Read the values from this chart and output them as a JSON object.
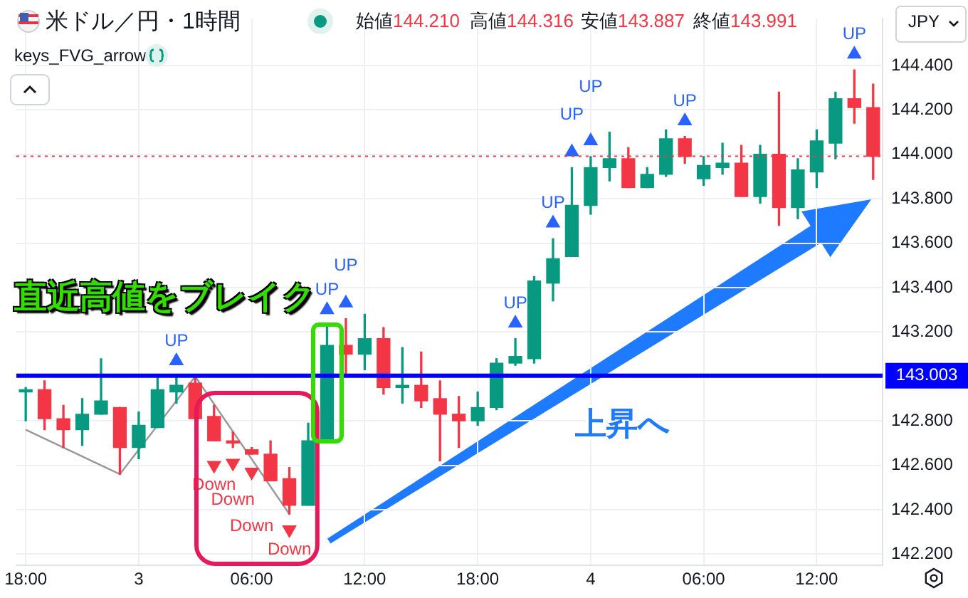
{
  "chart_data": {
    "type": "candlestick",
    "title": "米ドル／円・1時間",
    "annotations": [
      "keys_FVG_arrow",
      "始値144.210",
      "高値144.316",
      "安値143.887",
      "終値143.991",
      "JPY",
      "直近高値をブレイク",
      "上昇へ"
    ],
    "categories": [
      "18:00",
      null,
      null,
      null,
      null,
      null,
      "3",
      null,
      null,
      null,
      null,
      null,
      "06:00",
      null,
      null,
      null,
      null,
      null,
      "12:00",
      null,
      null,
      null,
      null,
      null,
      "18:00",
      null,
      null,
      null,
      null,
      null,
      "4",
      null,
      null,
      null,
      null,
      null,
      "06:00",
      null,
      null,
      null,
      null,
      null,
      "12:00",
      null,
      null,
      null
    ],
    "ohlc": [
      [
        142.93,
        142.95,
        142.8,
        142.94
      ],
      [
        142.94,
        142.98,
        142.76,
        142.81
      ],
      [
        142.81,
        142.87,
        142.68,
        142.76
      ],
      [
        142.76,
        142.9,
        142.69,
        142.83
      ],
      [
        142.83,
        143.08,
        142.83,
        142.89
      ],
      [
        142.86,
        142.86,
        142.56,
        142.68
      ],
      [
        142.68,
        142.84,
        142.63,
        142.78
      ],
      [
        142.77,
        143.0,
        142.77,
        142.94
      ],
      [
        142.93,
        143.0,
        142.88,
        142.96
      ],
      [
        142.97,
        143.0,
        142.81,
        142.81
      ],
      [
        142.82,
        142.87,
        142.71,
        142.71
      ],
      [
        142.71,
        142.75,
        142.68,
        142.7
      ],
      [
        142.67,
        142.68,
        142.65,
        142.65
      ],
      [
        142.65,
        142.71,
        142.53,
        142.53
      ],
      [
        142.54,
        142.59,
        142.38,
        142.42
      ],
      [
        142.42,
        142.79,
        142.42,
        142.71
      ],
      [
        142.71,
        143.24,
        142.71,
        143.14
      ],
      [
        143.14,
        143.26,
        143.01,
        143.1
      ],
      [
        143.1,
        143.28,
        143.03,
        143.17
      ],
      [
        143.17,
        143.22,
        142.92,
        142.95
      ],
      [
        142.95,
        143.13,
        142.88,
        142.96
      ],
      [
        142.96,
        143.11,
        142.86,
        142.89
      ],
      [
        142.9,
        142.98,
        142.62,
        142.83
      ],
      [
        142.83,
        142.91,
        142.68,
        142.8
      ],
      [
        142.8,
        142.93,
        142.78,
        142.86
      ],
      [
        142.86,
        143.08,
        142.85,
        143.06
      ],
      [
        143.06,
        143.17,
        143.05,
        143.09
      ],
      [
        143.08,
        143.45,
        143.06,
        143.43
      ],
      [
        143.42,
        143.62,
        143.34,
        143.53
      ],
      [
        143.54,
        143.94,
        143.54,
        143.77
      ],
      [
        143.77,
        143.99,
        143.73,
        143.94
      ],
      [
        143.94,
        144.1,
        143.88,
        143.98
      ],
      [
        143.98,
        144.03,
        143.85,
        143.85
      ],
      [
        143.85,
        143.94,
        143.85,
        143.91
      ],
      [
        143.91,
        144.11,
        143.9,
        144.07
      ],
      [
        144.07,
        144.08,
        143.96,
        143.99
      ],
      [
        143.89,
        143.99,
        143.86,
        143.95
      ],
      [
        143.94,
        144.05,
        143.91,
        143.96
      ],
      [
        143.96,
        144.04,
        143.81,
        143.81
      ],
      [
        143.81,
        144.04,
        143.78,
        144.0
      ],
      [
        144.0,
        144.28,
        143.68,
        143.76
      ],
      [
        143.76,
        143.98,
        143.71,
        143.93
      ],
      [
        143.92,
        144.11,
        143.85,
        144.06
      ],
      [
        144.05,
        144.28,
        143.98,
        144.25
      ],
      [
        144.25,
        144.38,
        144.14,
        144.21
      ],
      [
        144.21,
        144.316,
        143.887,
        143.991
      ]
    ],
    "colors": [
      "#089981",
      "#f23645",
      "#f23645",
      "#089981",
      "#089981",
      "#f23645",
      "#089981",
      "#089981",
      "#089981",
      "#f23645",
      "#f23645",
      "#f23645",
      "#f23645",
      "#f23645",
      "#f23645",
      "#089981",
      "#089981",
      "#f23645",
      "#089981",
      "#f23645",
      "#089981",
      "#f23645",
      "#f23645",
      "#f23645",
      "#089981",
      "#089981",
      "#089981",
      "#089981",
      "#089981",
      "#089981",
      "#089981",
      "#089981",
      "#f23645",
      "#089981",
      "#089981",
      "#f23645",
      "#089981",
      "#089981",
      "#f23645",
      "#089981",
      "#f23645",
      "#089981",
      "#089981",
      "#089981",
      "#f23645",
      "#f23645"
    ],
    "series": [
      {
        "type": "line",
        "color": "#999999",
        "marker": "none",
        "values": [
          142.76,
          null,
          null,
          null,
          null,
          142.56,
          null,
          null,
          null,
          143.0,
          null,
          null,
          null,
          null,
          142.38,
          null,
          null,
          null,
          null,
          null,
          null,
          null,
          null,
          null,
          null,
          null,
          null,
          null,
          null,
          null,
          null,
          null,
          null,
          null,
          null,
          null,
          null,
          null,
          null,
          null,
          null,
          null,
          null,
          null,
          null,
          null
        ]
      },
      {
        "type": "scatter",
        "name": "UP",
        "color": "#2962ff",
        "marker": "triangle",
        "values": [
          null,
          null,
          null,
          null,
          null,
          null,
          null,
          null,
          143.07,
          null,
          null,
          null,
          null,
          null,
          null,
          null,
          143.3,
          143.33,
          null,
          null,
          null,
          null,
          null,
          null,
          null,
          null,
          143.24,
          null,
          143.69,
          144.01,
          144.06,
          null,
          null,
          null,
          null,
          144.15,
          null,
          null,
          null,
          null,
          null,
          null,
          null,
          null,
          144.45,
          null
        ]
      },
      {
        "type": "scatter",
        "name": "Down",
        "color": "#f23645",
        "marker": "triangle",
        "values": [
          null,
          null,
          null,
          null,
          null,
          null,
          null,
          null,
          null,
          null,
          142.6,
          142.61,
          142.57,
          null,
          142.31,
          null,
          null,
          null,
          null,
          null,
          null,
          null,
          null,
          null,
          null,
          null,
          null,
          null,
          null,
          null,
          null,
          null,
          null,
          null,
          null,
          null,
          null,
          null,
          null,
          null,
          null,
          null,
          null,
          null,
          null,
          null
        ]
      }
    ],
    "ylim": [
      142.15,
      144.61
    ],
    "yticks": [
      {
        "value": 142.2,
        "label": "142.200"
      },
      {
        "value": 142.4,
        "label": "142.400"
      },
      {
        "value": 142.6,
        "label": "142.600"
      },
      {
        "value": 142.8,
        "label": "142.800"
      },
      {
        "value": 143.0,
        "label": null
      },
      {
        "value": 143.2,
        "label": "143.200"
      },
      {
        "value": 143.4,
        "label": "143.400"
      },
      {
        "value": 143.6,
        "label": "143.600"
      },
      {
        "value": 143.8,
        "label": "143.800"
      },
      {
        "value": 144.0,
        "label": "144.000"
      },
      {
        "value": 144.2,
        "label": "144.200"
      },
      {
        "value": 144.4,
        "label": "144.400"
      }
    ],
    "ref_lines": [
      {
        "axis": "y",
        "value": 143.003,
        "label": "143.003",
        "color": "#0000ff",
        "line_style": "solid"
      },
      {
        "axis": "y",
        "value": 143.991,
        "label": null,
        "color": "#f23645",
        "line_style": "dotted"
      }
    ],
    "grid": true,
    "legend": false
  }
}
